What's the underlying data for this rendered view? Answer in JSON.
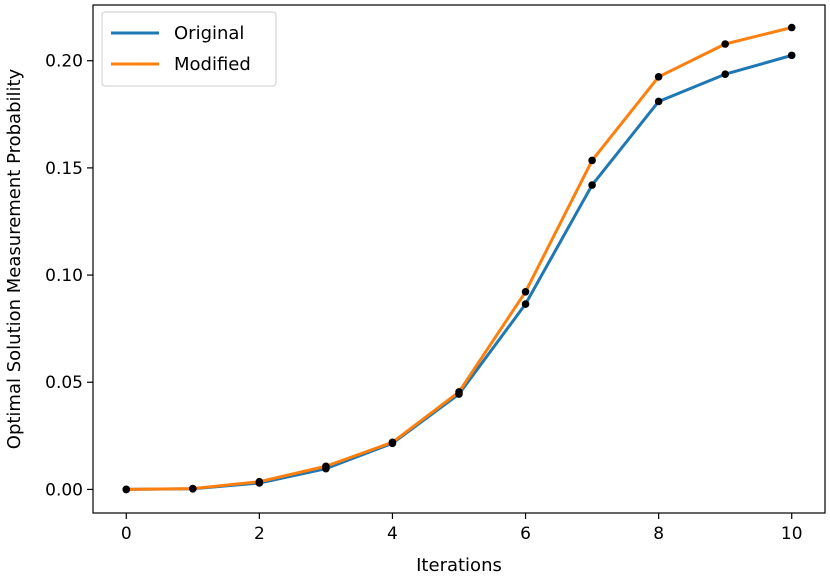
{
  "chart_data": {
    "type": "line",
    "xlabel": "Iterations",
    "ylabel": "Optimal Solution Measurement Probability",
    "xlim": [
      -0.5,
      10.5
    ],
    "ylim": [
      -0.011,
      0.226
    ],
    "xticks": [
      0,
      2,
      4,
      6,
      8,
      10
    ],
    "xtick_labels": [
      "0",
      "2",
      "4",
      "6",
      "8",
      "10"
    ],
    "yticks": [
      0.0,
      0.05,
      0.1,
      0.15,
      0.2
    ],
    "ytick_labels": [
      "0.00",
      "0.05",
      "0.10",
      "0.15",
      "0.20"
    ],
    "grid": false,
    "legend_position": "upper left",
    "x": [
      0,
      1,
      2,
      3,
      4,
      5,
      6,
      7,
      8,
      9,
      10
    ],
    "series": [
      {
        "name": "Original",
        "color": "#1f77b4",
        "values": [
          0.0,
          0.0003,
          0.003,
          0.0097,
          0.0215,
          0.0445,
          0.0865,
          0.142,
          0.181,
          0.1937,
          0.2025
        ]
      },
      {
        "name": "Modified",
        "color": "#ff7f0e",
        "values": [
          0.0,
          0.0004,
          0.0036,
          0.0108,
          0.022,
          0.0455,
          0.0922,
          0.1535,
          0.1925,
          0.2078,
          0.2155
        ]
      }
    ],
    "marker_color": "#000000"
  }
}
